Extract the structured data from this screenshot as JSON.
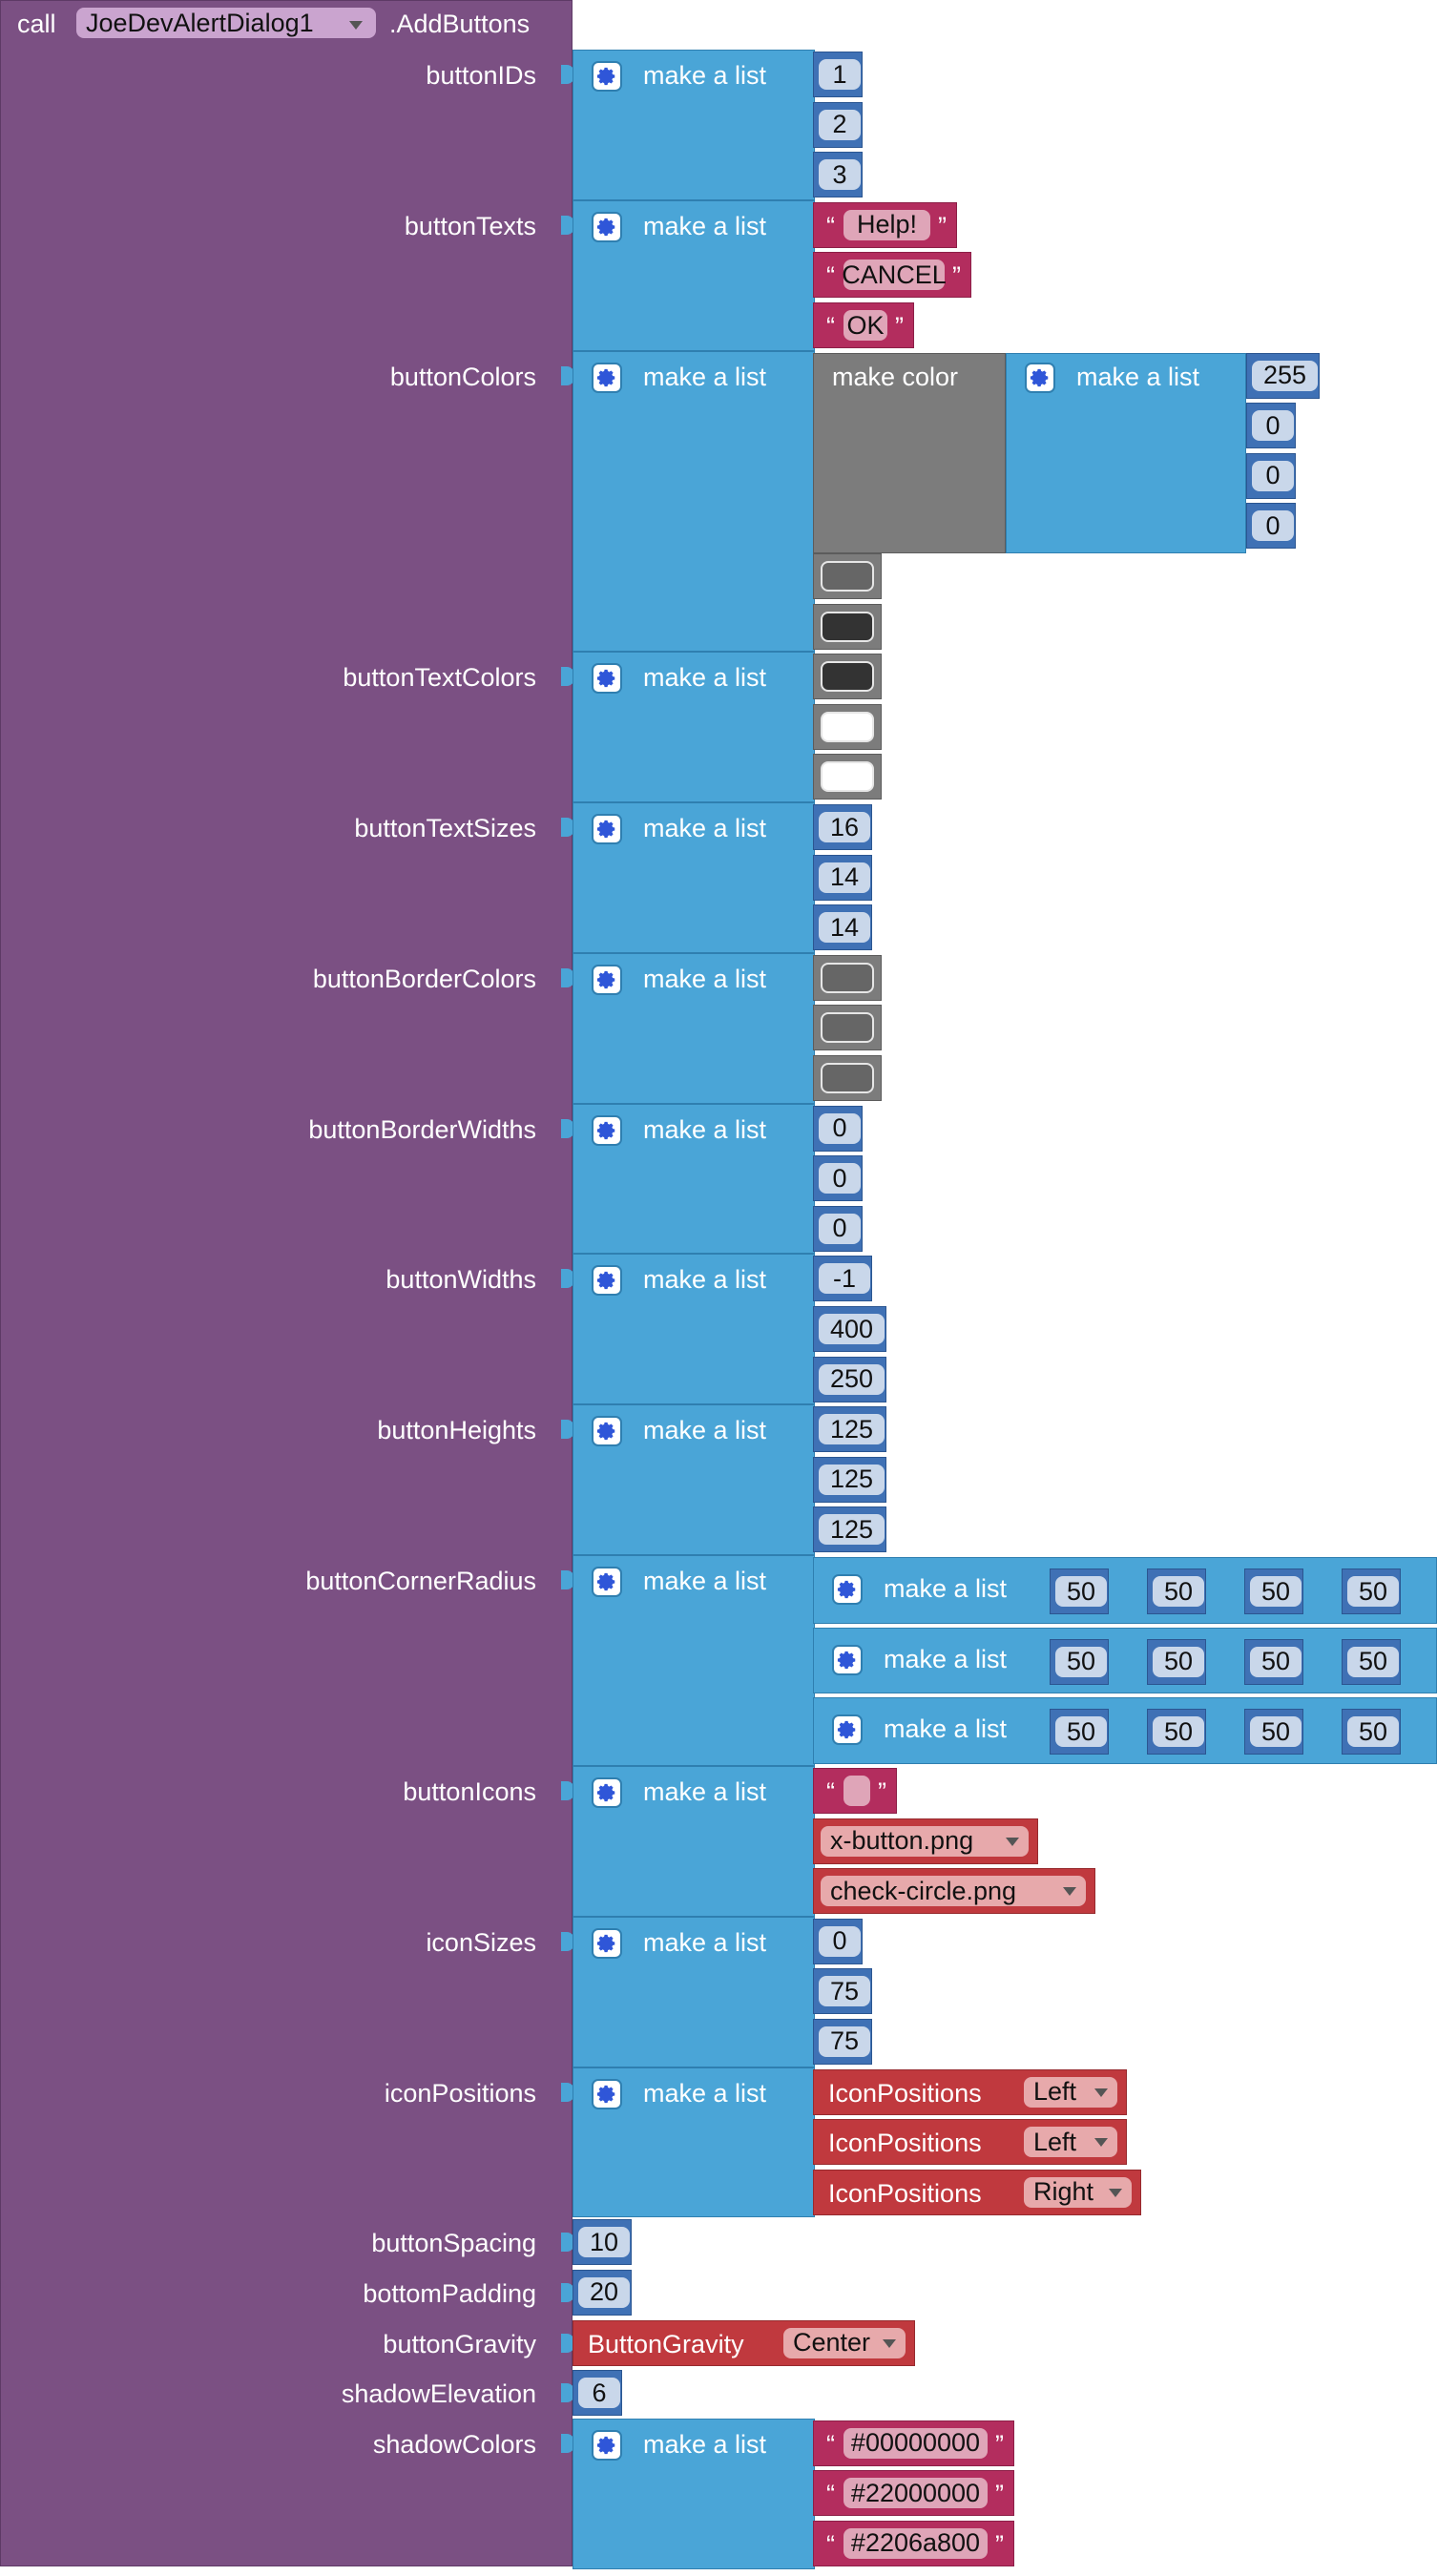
{
  "call": {
    "call_word": "call",
    "component": "JoeDevAlertDialog1",
    "method": ".AddButtons"
  },
  "make_list_label": "make a list",
  "make_color_label": "make color",
  "params": [
    {
      "name": "buttonIDs",
      "items": [
        {
          "type": "number",
          "value": "1"
        },
        {
          "type": "number",
          "value": "2"
        },
        {
          "type": "number",
          "value": "3"
        }
      ]
    },
    {
      "name": "buttonTexts",
      "items": [
        {
          "type": "text",
          "value": "Help!"
        },
        {
          "type": "text",
          "value": "CANCEL"
        },
        {
          "type": "text",
          "value": "OK"
        }
      ]
    },
    {
      "name": "buttonColors",
      "items": [
        {
          "type": "make_color",
          "values": [
            "255",
            "0",
            "0",
            "0"
          ]
        },
        {
          "type": "color",
          "color": "#666666"
        },
        {
          "type": "color",
          "color": "#333333"
        }
      ]
    },
    {
      "name": "buttonTextColors",
      "items": [
        {
          "type": "color",
          "color": "#333333"
        },
        {
          "type": "color",
          "color": "#ffffff"
        },
        {
          "type": "color",
          "color": "#ffffff"
        }
      ]
    },
    {
      "name": "buttonTextSizes",
      "items": [
        {
          "type": "number",
          "value": "16"
        },
        {
          "type": "number",
          "value": "14"
        },
        {
          "type": "number",
          "value": "14"
        }
      ]
    },
    {
      "name": "buttonBorderColors",
      "items": [
        {
          "type": "color",
          "color": "#666666"
        },
        {
          "type": "color",
          "color": "#666666"
        },
        {
          "type": "color",
          "color": "#666666"
        }
      ]
    },
    {
      "name": "buttonBorderWidths",
      "items": [
        {
          "type": "number",
          "value": "0"
        },
        {
          "type": "number",
          "value": "0"
        },
        {
          "type": "number",
          "value": "0"
        }
      ]
    },
    {
      "name": "buttonWidths",
      "items": [
        {
          "type": "number",
          "value": "-1"
        },
        {
          "type": "number",
          "value": "400"
        },
        {
          "type": "number",
          "value": "250"
        }
      ]
    },
    {
      "name": "buttonHeights",
      "items": [
        {
          "type": "number",
          "value": "125"
        },
        {
          "type": "number",
          "value": "125"
        },
        {
          "type": "number",
          "value": "125"
        }
      ]
    },
    {
      "name": "buttonCornerRadius",
      "items": [
        {
          "type": "sublist",
          "values": [
            "50",
            "50",
            "50",
            "50"
          ]
        },
        {
          "type": "sublist",
          "values": [
            "50",
            "50",
            "50",
            "50"
          ]
        },
        {
          "type": "sublist",
          "values": [
            "50",
            "50",
            "50",
            "50"
          ]
        }
      ]
    },
    {
      "name": "buttonIcons",
      "items": [
        {
          "type": "text",
          "value": ""
        },
        {
          "type": "asset",
          "value": "x-button.png"
        },
        {
          "type": "asset",
          "value": "check-circle.png"
        }
      ]
    },
    {
      "name": "iconSizes",
      "items": [
        {
          "type": "number",
          "value": "0"
        },
        {
          "type": "number",
          "value": "75"
        },
        {
          "type": "number",
          "value": "75"
        }
      ]
    },
    {
      "name": "iconPositions",
      "items": [
        {
          "type": "enum",
          "enum": "IconPositions",
          "value": "Left"
        },
        {
          "type": "enum",
          "enum": "IconPositions",
          "value": "Left"
        },
        {
          "type": "enum",
          "enum": "IconPositions",
          "value": "Right"
        }
      ]
    },
    {
      "name": "buttonSpacing",
      "single": {
        "type": "number",
        "value": "10"
      }
    },
    {
      "name": "bottomPadding",
      "single": {
        "type": "number",
        "value": "20"
      }
    },
    {
      "name": "buttonGravity",
      "single": {
        "type": "enum",
        "enum": "ButtonGravity",
        "value": "Center"
      }
    },
    {
      "name": "shadowElevation",
      "single": {
        "type": "number",
        "value": "6"
      }
    },
    {
      "name": "shadowColors",
      "items": [
        {
          "type": "text",
          "value": "#00000000"
        },
        {
          "type": "text",
          "value": "#22000000"
        },
        {
          "type": "text",
          "value": "#2206a800"
        }
      ]
    }
  ]
}
